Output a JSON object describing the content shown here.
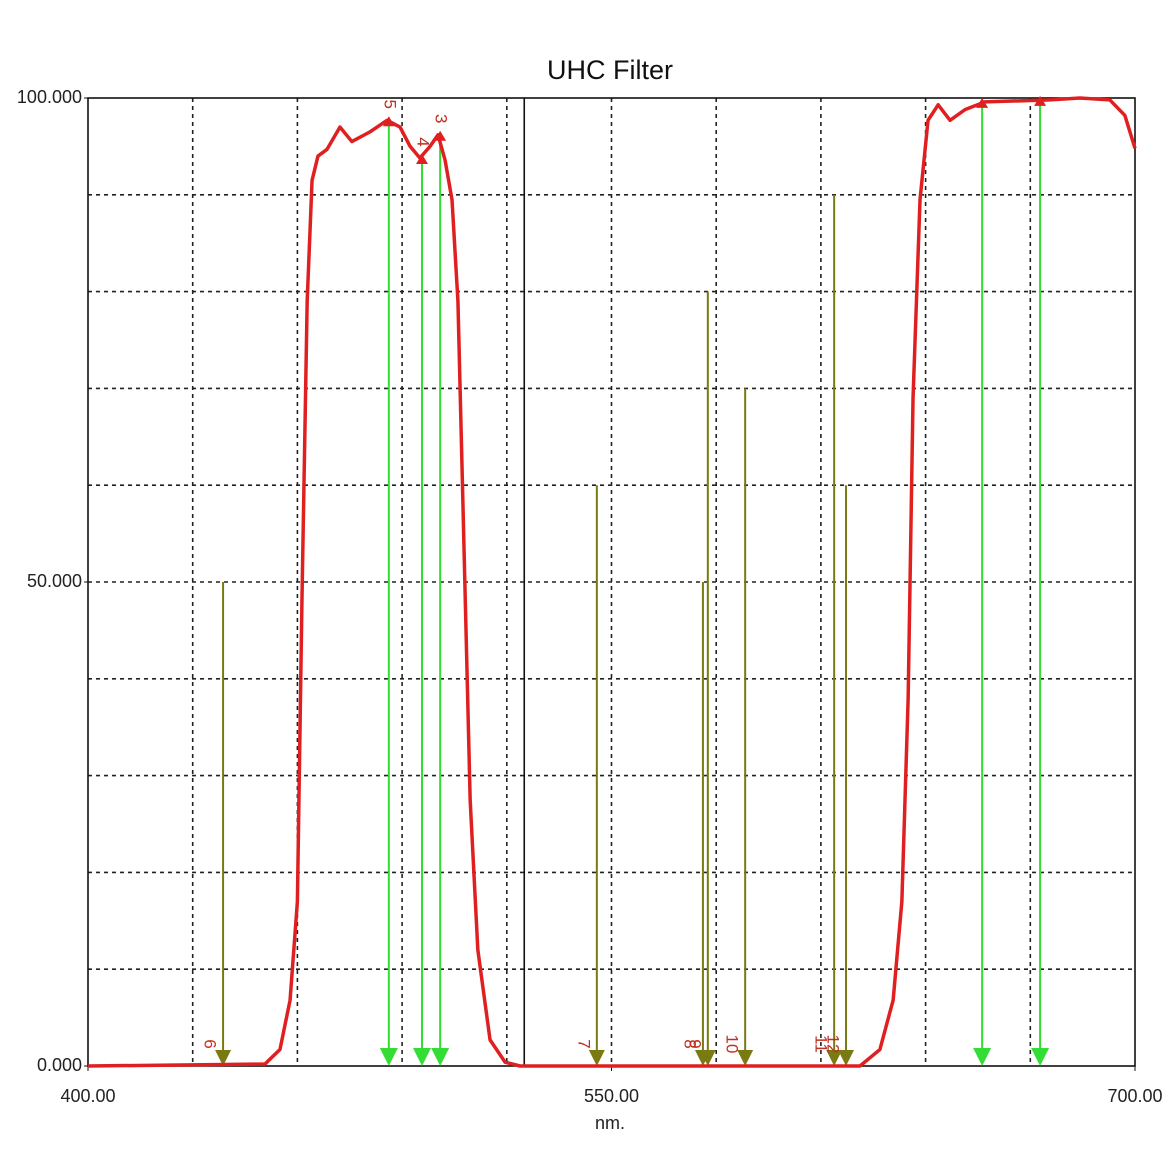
{
  "chart_data": {
    "type": "line",
    "title": "UHC Filter",
    "x_label": "nm.",
    "xlim": [
      400,
      700
    ],
    "ylim": [
      0,
      100
    ],
    "xticks": [
      {
        "value": 400,
        "label": "400.00"
      },
      {
        "value": 550,
        "label": "550.00"
      },
      {
        "value": 700,
        "label": "700.00"
      }
    ],
    "yticks": [
      {
        "value": 0,
        "label": "0.000"
      },
      {
        "value": 50,
        "label": "50.000"
      },
      {
        "value": 100,
        "label": "100.000"
      }
    ],
    "x_grid": [
      430,
      460,
      490,
      520,
      550,
      580,
      610,
      640,
      670
    ],
    "y_grid": [
      10,
      20,
      30,
      40,
      50,
      60,
      70,
      80,
      90
    ],
    "cursor_x": 525,
    "x": [
      400,
      450.7,
      455,
      457.9,
      460,
      461.3,
      462.8,
      464.2,
      465.9,
      468.5,
      472.2,
      475.6,
      480.8,
      485.7,
      489.4,
      492.3,
      495.1,
      498,
      500.3,
      502.3,
      504.3,
      506,
      507.4,
      509.5,
      511.7,
      515.2,
      519.5,
      523.8,
      621.2,
      626.9,
      630.7,
      633.2,
      635,
      636.4,
      638.4,
      640.7,
      643.6,
      647,
      651.3,
      657,
      675.6,
      684.2,
      692.8,
      697.1,
      700
    ],
    "series": [
      {
        "color": "#e02020",
        "values": [
          0,
          0.2,
          1.7,
          6.8,
          17,
          48,
          79,
          91.5,
          94,
          94.7,
          97,
          95.5,
          96.5,
          97.7,
          97,
          95,
          93.8,
          95,
          96.2,
          93.6,
          89.5,
          79,
          58.5,
          27.5,
          12,
          2.7,
          0.4,
          0,
          0,
          1.7,
          6.8,
          17,
          38,
          69,
          89.5,
          97.7,
          99.3,
          97.7,
          98.8,
          99.6,
          99.8,
          100,
          99.8,
          98.2,
          94.8
        ]
      }
    ],
    "transmission_markers": {
      "color": "#33dd33",
      "x": [
        486.2,
        495.7,
        500.9,
        656.2,
        672.8
      ],
      "values": [
        97.7,
        93.8,
        96.2,
        99.6,
        99.8
      ],
      "labels": [
        "5",
        "4",
        "3",
        null,
        null
      ]
    },
    "line_markers": {
      "color": "#7a7a12",
      "x": [
        438.7,
        545.8,
        576.2,
        577.6,
        588.3,
        613.8,
        617.2
      ],
      "values": [
        50,
        60,
        50,
        80,
        70,
        90,
        60
      ],
      "labels": [
        "6",
        "7",
        "8",
        "9",
        "10",
        "11",
        "12"
      ]
    }
  }
}
